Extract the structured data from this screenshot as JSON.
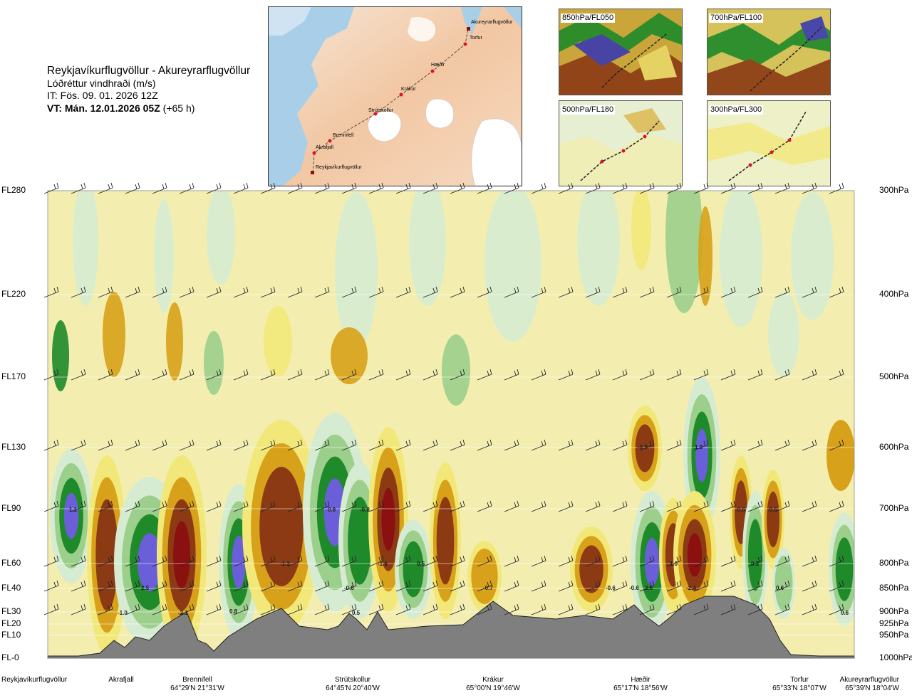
{
  "header": {
    "route_title": "Reykjavíkurflugvöllur - Akureyrarflugvöllur",
    "variable": "Lóðréttur vindhraði (m/s)",
    "issue_time": "IT: Fös. 09. 01. 2026 12Z",
    "valid_time_bold": "VT: Mán. 12.01.2026 05Z",
    "valid_time_lead": "(+65 h)"
  },
  "map": {
    "stations": [
      "Akureyrarflugvöllur",
      "Torfur",
      "Hæðir",
      "Krákur",
      "Strútskollur",
      "Brennifell",
      "Akrafjall",
      "Reykjavíkurflugvöllur"
    ]
  },
  "level_panels": [
    {
      "label": "850hPa/FL050"
    },
    {
      "label": "700hPa/FL100"
    },
    {
      "label": "500hPa/FL180"
    },
    {
      "label": "300hPa/FL300"
    }
  ],
  "colors": {
    "strong_down": "#8b1010",
    "down": "#8b3a14",
    "mod_down": "#d8a11a",
    "weak_down": "#f2e87a",
    "neutral": "#f3eeb0",
    "weak_up": "#d6ecd2",
    "mod_up": "#9ccf8c",
    "up": "#1e8a2a",
    "strong_up": "#6a5fd8",
    "terrain": "#7f7f7f"
  },
  "chart_data": {
    "type": "heatmap",
    "title": "Lóðréttur vindhraði (m/s)",
    "y_flight_levels": [
      "FL280",
      "FL220",
      "FL170",
      "FL130",
      "FL90",
      "FL60",
      "FL40",
      "FL30",
      "FL20",
      "FL10",
      "FL-0"
    ],
    "y_pressure_levels": [
      "300hPa",
      "400hPa",
      "500hPa",
      "600hPa",
      "700hPa",
      "800hPa",
      "850hPa",
      "900hPa",
      "925hPa",
      "950hPa",
      "1000hPa"
    ],
    "x_waypoints": [
      {
        "name": "Reykjavíkurflugvöllur",
        "coord": ""
      },
      {
        "name": "Akrafjall",
        "coord": ""
      },
      {
        "name": "Brennifell",
        "coord": "64°29'N 21°31'W"
      },
      {
        "name": "Strútskollur",
        "coord": "64°45'N 20°40'W"
      },
      {
        "name": "Krákur",
        "coord": "65°00'N 19°46'W"
      },
      {
        "name": "Hæðir",
        "coord": "65°17'N 18°56'W"
      },
      {
        "name": "Torfur",
        "coord": "65°33'N 18°07'W"
      },
      {
        "name": "Akureyrarflugvöllur",
        "coord": "65°39'N 18°04'W"
      }
    ],
    "cells": [
      {
        "value": "1.1",
        "level": "FL90"
      },
      {
        "value": "2.5",
        "level": "FL40"
      },
      {
        "value": "-1.0",
        "level": "FL30"
      },
      {
        "value": "-2.1",
        "level": "FL30"
      },
      {
        "value": "0.8",
        "level": "FL30"
      },
      {
        "value": "-1.2",
        "level": "FL60"
      },
      {
        "value": "0.8",
        "level": "FL90"
      },
      {
        "value": "-0.8",
        "level": "FL90"
      },
      {
        "value": "-0.6",
        "level": "FL40"
      },
      {
        "value": "0.5",
        "level": "FL30"
      },
      {
        "value": "-1.6",
        "level": "FL60"
      },
      {
        "value": "0.5",
        "level": "FL60"
      },
      {
        "value": "-0.7",
        "level": "FL40"
      },
      {
        "value": "-0.6",
        "level": "FL40"
      },
      {
        "value": "-0.6",
        "level": "FL40"
      },
      {
        "value": "2.6",
        "level": "FL40"
      },
      {
        "value": "-0.9",
        "level": "FL130"
      },
      {
        "value": "1.0",
        "level": "FL130"
      },
      {
        "value": "1.0",
        "level": "FL60"
      },
      {
        "value": "-2.4",
        "level": "FL40"
      },
      {
        "value": "-0.6",
        "level": "FL90"
      },
      {
        "value": "-0.6",
        "level": "FL90"
      },
      {
        "value": "0.3",
        "level": "FL60"
      },
      {
        "value": "0.6",
        "level": "FL40"
      },
      {
        "value": "0.6",
        "level": "FL30"
      }
    ]
  }
}
